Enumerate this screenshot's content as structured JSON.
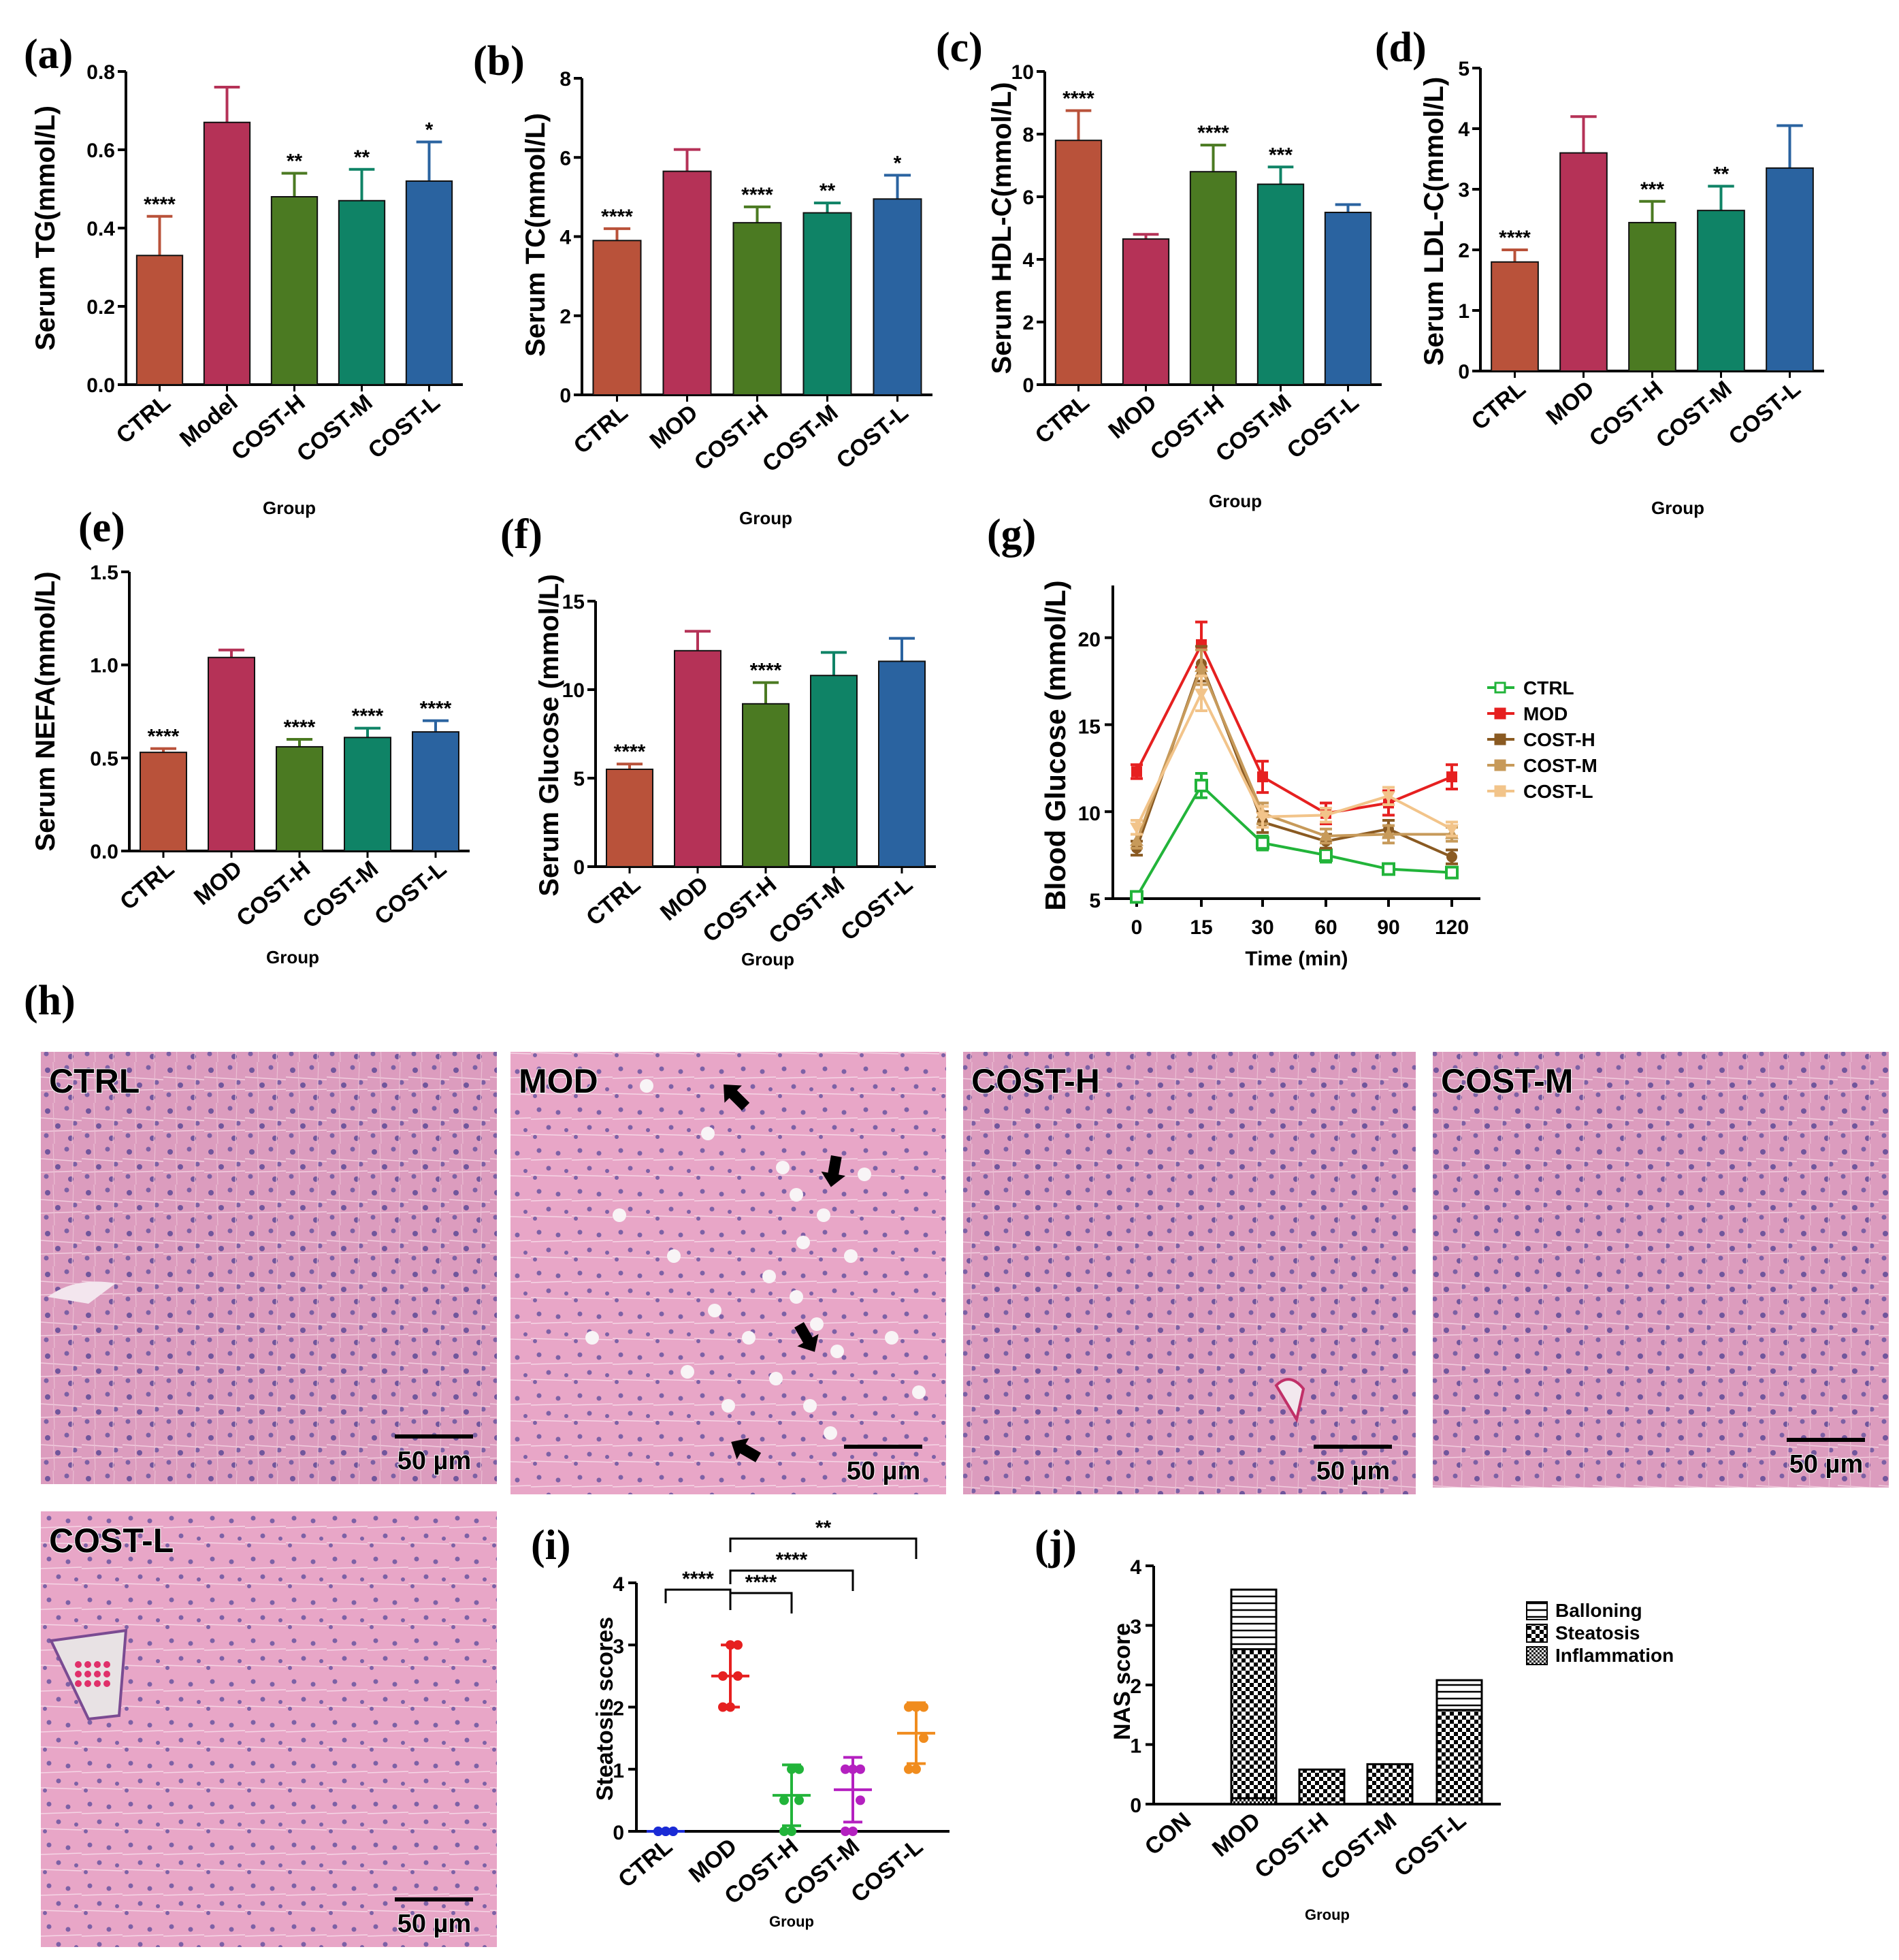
{
  "colors": {
    "CTRL": "#b9523a",
    "MOD": "#b53257",
    "COST-H": "#4b7a22",
    "COST-M": "#0f8366",
    "COST-L": "#2a63a0",
    "tissue_bg": "#d98fb4",
    "tissue_dark": "#5b3f8a"
  },
  "panel_labels": [
    "(a)",
    "(b)",
    "(c)",
    "(d)",
    "(e)",
    "(f)",
    "(g)",
    "(h)",
    "(i)",
    "(j)"
  ],
  "chart_data": [
    {
      "id": "a",
      "type": "bar",
      "ylabel": "Serum TG(mmol/L)",
      "xlabel": "Group",
      "categories": [
        "CTRL",
        "Model",
        "COST-H",
        "COST-M",
        "COST-L"
      ],
      "values": [
        0.33,
        0.67,
        0.48,
        0.47,
        0.52
      ],
      "errors": [
        0.1,
        0.09,
        0.06,
        0.08,
        0.1
      ],
      "sig": [
        "****",
        "",
        "**",
        "**",
        "*"
      ],
      "ylim": [
        0,
        0.8
      ],
      "yticks": [
        "0.0",
        "0.2",
        "0.4",
        "0.6",
        "0.8"
      ]
    },
    {
      "id": "b",
      "type": "bar",
      "ylabel": "Serum TC(mmol/L)",
      "xlabel": "Group",
      "categories": [
        "CTRL",
        "MOD",
        "COST-H",
        "COST-M",
        "COST-L"
      ],
      "values": [
        3.9,
        5.65,
        4.35,
        4.6,
        4.95
      ],
      "errors": [
        0.3,
        0.55,
        0.4,
        0.25,
        0.6
      ],
      "sig": [
        "****",
        "",
        "****",
        "**",
        "*"
      ],
      "ylim": [
        0,
        8
      ],
      "yticks": [
        "0",
        "2",
        "4",
        "6",
        "8"
      ]
    },
    {
      "id": "c",
      "type": "bar",
      "ylabel": "Serum HDL-C(mmol/L)",
      "xlabel": "Group",
      "categories": [
        "CTRL",
        "MOD",
        "COST-H",
        "COST-M",
        "COST-L"
      ],
      "values": [
        7.8,
        4.65,
        6.8,
        6.4,
        5.5
      ],
      "errors": [
        0.95,
        0.15,
        0.85,
        0.55,
        0.25
      ],
      "sig": [
        "****",
        "",
        "****",
        "***",
        ""
      ],
      "ylim": [
        0,
        10
      ],
      "yticks": [
        "0",
        "2",
        "4",
        "6",
        "8",
        "10"
      ]
    },
    {
      "id": "d",
      "type": "bar",
      "ylabel": "Serum LDL-C(mmol/L)",
      "xlabel": "Group",
      "categories": [
        "CTRL",
        "MOD",
        "COST-H",
        "COST-M",
        "COST-L"
      ],
      "values": [
        1.8,
        3.6,
        2.45,
        2.65,
        3.35
      ],
      "errors": [
        0.2,
        0.6,
        0.35,
        0.4,
        0.7
      ],
      "sig": [
        "****",
        "",
        "***",
        "**",
        ""
      ],
      "ylim": [
        0,
        5
      ],
      "yticks": [
        "0",
        "1",
        "2",
        "3",
        "4",
        "5"
      ]
    },
    {
      "id": "e",
      "type": "bar",
      "ylabel": "Serum NEFA(mmol/L)",
      "xlabel": "Group",
      "categories": [
        "CTRL",
        "MOD",
        "COST-H",
        "COST-M",
        "COST-L"
      ],
      "values": [
        0.53,
        1.04,
        0.56,
        0.61,
        0.64
      ],
      "errors": [
        0.02,
        0.04,
        0.04,
        0.05,
        0.06
      ],
      "sig": [
        "****",
        "",
        "****",
        "****",
        "****"
      ],
      "ylim": [
        0,
        1.5
      ],
      "yticks": [
        "0.0",
        "0.5",
        "1.0",
        "1.5"
      ]
    },
    {
      "id": "f",
      "type": "bar",
      "ylabel": "Serum Glucose (mmol/L)",
      "xlabel": "Group",
      "categories": [
        "CTRL",
        "MOD",
        "COST-H",
        "COST-M",
        "COST-L"
      ],
      "values": [
        5.5,
        12.2,
        9.2,
        10.8,
        11.6
      ],
      "errors": [
        0.3,
        1.1,
        1.2,
        1.3,
        1.3
      ],
      "sig": [
        "****",
        "",
        "****",
        "",
        ""
      ],
      "ylim": [
        0,
        15
      ],
      "yticks": [
        "0",
        "5",
        "10",
        "15"
      ]
    },
    {
      "id": "g",
      "type": "line",
      "ylabel": "Blood Glucose (mmol/L)",
      "xlabel": "Time (min)",
      "x": [
        "0",
        "15",
        "30",
        "60",
        "90",
        "120"
      ],
      "ylim": [
        5,
        23
      ],
      "yticks": [
        "5",
        "10",
        "15",
        "20"
      ],
      "series": [
        {
          "name": "CTRL",
          "color": "#22b43a",
          "values": [
            5.1,
            11.5,
            8.2,
            7.5,
            6.7,
            6.5
          ],
          "errors": [
            0.2,
            0.7,
            0.4,
            0.4,
            0.3,
            0.3
          ]
        },
        {
          "name": "MOD",
          "color": "#e62020",
          "values": [
            12.3,
            19.6,
            12.0,
            9.9,
            10.5,
            12.0
          ],
          "errors": [
            0.4,
            1.3,
            0.9,
            0.6,
            0.7,
            0.7
          ]
        },
        {
          "name": "COST-H",
          "color": "#8a5a22",
          "values": [
            7.9,
            18.5,
            9.4,
            8.3,
            9.0,
            7.4
          ],
          "errors": [
            0.4,
            1.0,
            0.6,
            0.4,
            0.5,
            0.4
          ]
        },
        {
          "name": "COST-M",
          "color": "#c79a5a",
          "values": [
            8.3,
            18.3,
            9.9,
            8.6,
            8.7,
            8.7
          ],
          "errors": [
            0.4,
            1.0,
            0.6,
            0.4,
            0.5,
            0.4
          ]
        },
        {
          "name": "COST-L",
          "color": "#f2c48a",
          "values": [
            9.1,
            16.8,
            9.7,
            9.8,
            10.9,
            9.0
          ],
          "errors": [
            0.4,
            1.0,
            0.6,
            0.4,
            0.5,
            0.4
          ]
        }
      ]
    },
    {
      "id": "i",
      "type": "scatter",
      "ylabel": "Steatosis scores",
      "xlabel": "Group",
      "categories": [
        "CTRL",
        "MOD",
        "COST-H",
        "COST-M",
        "COST-L"
      ],
      "means": [
        0,
        2.5,
        0.58,
        0.67,
        1.58
      ],
      "sds": [
        0,
        0.5,
        0.49,
        0.52,
        0.49
      ],
      "points": [
        [
          0,
          0,
          0,
          0,
          0,
          0
        ],
        [
          2,
          2,
          2.5,
          2.5,
          3,
          3
        ],
        [
          0,
          0,
          0.5,
          0.5,
          1,
          1
        ],
        [
          0,
          0,
          0.5,
          1,
          1,
          1
        ],
        [
          1,
          1,
          1.5,
          2,
          2,
          2
        ]
      ],
      "colors": [
        "#1a2bd6",
        "#e62020",
        "#22b43a",
        "#b420c0",
        "#f08c1e"
      ],
      "brackets": [
        {
          "from": 0,
          "to": 1,
          "label": "****"
        },
        {
          "from": 1,
          "to": 2,
          "label": "****"
        },
        {
          "from": 1,
          "to": 3,
          "label": "****"
        },
        {
          "from": 1,
          "to": 4,
          "label": "**"
        }
      ],
      "ylim": [
        0,
        4
      ],
      "yticks": [
        "0",
        "1",
        "2",
        "3",
        "4"
      ]
    },
    {
      "id": "j",
      "type": "bar",
      "stacked": true,
      "ylabel": "NAS score",
      "xlabel": "Group",
      "categories": [
        "CON",
        "MOD",
        "COST-H",
        "COST-M",
        "COST-L"
      ],
      "series": [
        {
          "name": "Inflammation",
          "values": [
            0,
            0.1,
            0,
            0,
            0
          ]
        },
        {
          "name": "Steatosis",
          "values": [
            0,
            2.5,
            0.58,
            0.67,
            1.58
          ]
        },
        {
          "name": "Balloning",
          "values": [
            0,
            1.0,
            0,
            0,
            0.5
          ]
        }
      ],
      "legend_order": [
        "Balloning",
        "Steatosis",
        "Inflammation"
      ],
      "ylim": [
        0,
        4
      ],
      "yticks": [
        "0",
        "1",
        "2",
        "3",
        "4"
      ]
    }
  ],
  "histology": {
    "panels": [
      {
        "label": "CTRL",
        "scale": "50 µm",
        "arrows": 0
      },
      {
        "label": "MOD",
        "scale": "50 µm",
        "arrows": 4
      },
      {
        "label": "COST-H",
        "scale": "50 µm",
        "arrows": 0
      },
      {
        "label": "COST-M",
        "scale": "50 µm",
        "arrows": 0
      },
      {
        "label": "COST-L",
        "scale": "50 µm",
        "arrows": 0
      }
    ]
  }
}
